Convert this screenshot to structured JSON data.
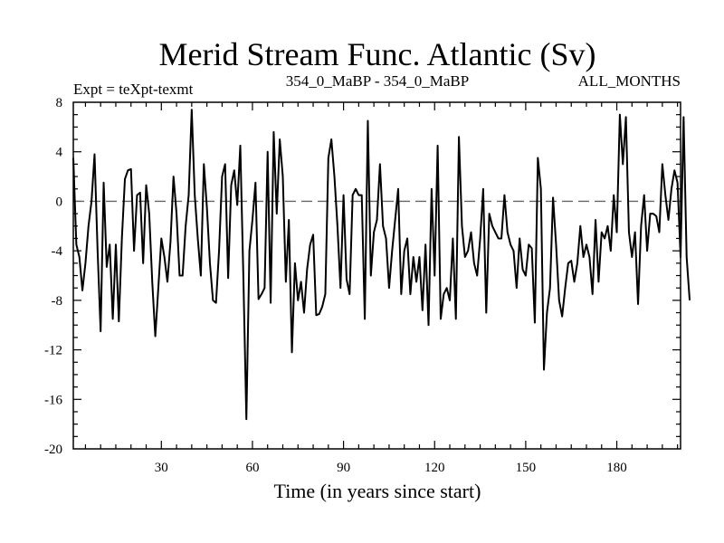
{
  "chart_data": {
    "type": "line",
    "title": "Merid Stream Func. Atlantic (Sv)",
    "subtitle_left": "Expt = teXpt-texmt",
    "subtitle_center": "354_0_MaBP - 354_0_MaBP",
    "subtitle_right": "ALL_MONTHS",
    "xlabel": "Time (in years since start)",
    "ylabel": "",
    "xlim": [
      1,
      201
    ],
    "ylim": [
      -20,
      8
    ],
    "xticks": [
      30,
      60,
      90,
      120,
      150,
      180
    ],
    "yticks": [
      -20,
      -16,
      -12,
      -8,
      -4,
      0,
      4,
      8
    ],
    "reference_line": {
      "y": 0,
      "style": "dashed"
    },
    "grid": false,
    "series": [
      {
        "x_start": 1,
        "x_step": 1,
        "values": [
          3.5,
          -3.5,
          -4.5,
          -7.2,
          -5.0,
          -2.0,
          0.0,
          3.8,
          -4.0,
          -10.5,
          1.5,
          -5.3,
          -3.5,
          -9.5,
          -3.5,
          -9.7,
          -3.0,
          1.8,
          2.5,
          2.6,
          -4.0,
          0.5,
          0.7,
          -5.0,
          1.3,
          -1.0,
          -6.5,
          -10.9,
          -7.0,
          -3.0,
          -4.5,
          -6.5,
          -3.3,
          2.0,
          -1.0,
          -6.0,
          -6.0,
          -2.0,
          0.5,
          7.4,
          0.5,
          -3.0,
          -6.0,
          3.0,
          -0.5,
          -5.0,
          -8.0,
          -8.2,
          -4.0,
          2.0,
          3.0,
          -6.2,
          1.3,
          2.5,
          -0.3,
          4.5,
          -6.0,
          -17.6,
          -4.0,
          -1.5,
          1.5,
          -7.9,
          -7.5,
          -7.0,
          4.0,
          -8.2,
          5.6,
          -1.0,
          5.0,
          2.0,
          -6.5,
          -1.5,
          -12.2,
          -5.0,
          -8.0,
          -6.5,
          -9.0,
          -5.5,
          -3.5,
          -2.7,
          -9.2,
          -9.1,
          -8.5,
          -7.5,
          3.5,
          5.0,
          2.0,
          -2.0,
          -7.0,
          0.5,
          -6.3,
          -7.5,
          0.5,
          1.0,
          0.5,
          0.5,
          -9.5,
          6.5,
          -6.0,
          -2.5,
          -1.5,
          3.0,
          -2.0,
          -3.0,
          -7.0,
          -4.0,
          -1.5,
          1.0,
          -7.5,
          -4.0,
          -3.0,
          -7.5,
          -4.5,
          -6.5,
          -4.5,
          -8.8,
          -3.5,
          -10.0,
          1.0,
          -6.0,
          4.5,
          -9.5,
          -7.5,
          -7.0,
          -8.0,
          -3.0,
          -9.5,
          5.2,
          -2.0,
          -4.5,
          -4.0,
          -2.5,
          -5.0,
          -6.0,
          -3.0,
          1.0,
          -9.0,
          -1.0,
          -2.0,
          -2.5,
          -3.0,
          -3.0,
          0.5,
          -2.5,
          -3.5,
          -4.0,
          -7.0,
          -3.0,
          -5.5,
          -6.0,
          -3.5,
          -3.8,
          -9.8,
          3.5,
          1.0,
          -13.6,
          -9.0,
          -7.0,
          0.3,
          -3.5,
          -8.0,
          -9.3,
          -7.0,
          -5.0,
          -4.8,
          -6.5,
          -5.0,
          -2.0,
          -4.5,
          -3.5,
          -4.5,
          -7.5,
          -1.5,
          -6.5,
          -2.5,
          -3.0,
          -2.0,
          -4.0,
          0.5,
          -2.5,
          7.0,
          3.0,
          6.8,
          -2.5,
          -4.5,
          -2.5,
          -8.3,
          -2.0,
          0.5,
          -4.0,
          -1.0,
          -1.0,
          -1.2,
          -2.5,
          3.0,
          0.5,
          -1.5,
          1.0,
          2.5,
          1.5,
          -4.5,
          6.8,
          -4.5,
          -8.0
        ]
      }
    ]
  }
}
